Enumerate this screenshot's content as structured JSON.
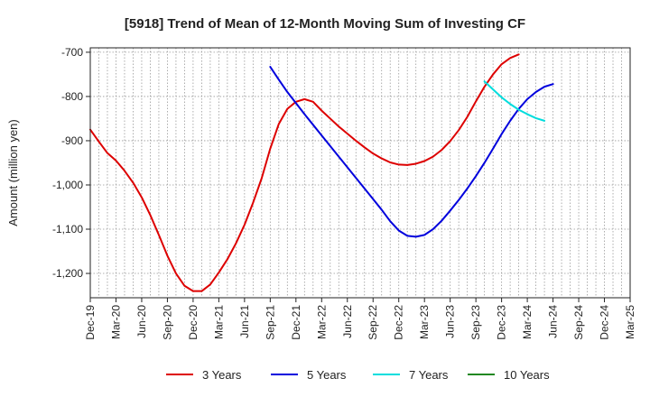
{
  "chart_data": {
    "type": "line",
    "title": "[5918]  Trend of Mean of 12-Month Moving Sum of Investing CF",
    "xlabel": "",
    "ylabel": "Amount (million yen)",
    "ylim": [
      -1255,
      -690
    ],
    "yticks": [
      -700,
      -800,
      -900,
      -1000,
      -1100,
      -1200
    ],
    "ytick_labels": [
      "-700",
      "-800",
      "-900",
      "-1,000",
      "-1,100",
      "-1,200"
    ],
    "x_start": "Dec-19",
    "x_end": "Mar-25",
    "n_months": 64,
    "xtick_labels": [
      "Dec-19",
      "Mar-20",
      "Jun-20",
      "Sep-20",
      "Dec-20",
      "Mar-21",
      "Jun-21",
      "Sep-21",
      "Dec-21",
      "Mar-22",
      "Jun-22",
      "Sep-22",
      "Dec-22",
      "Mar-23",
      "Jun-23",
      "Sep-23",
      "Dec-23",
      "Mar-24",
      "Jun-24",
      "Sep-24",
      "Dec-24",
      "Mar-25"
    ],
    "grid": true,
    "legend_position": "bottom",
    "series": [
      {
        "name": "3 Years",
        "color": "#dd0000",
        "start_index": 0,
        "values": [
          -875,
          -902,
          -928,
          -945,
          -968,
          -995,
          -1028,
          -1068,
          -1113,
          -1160,
          -1200,
          -1228,
          -1240,
          -1240,
          -1225,
          -1198,
          -1168,
          -1132,
          -1090,
          -1040,
          -985,
          -918,
          -862,
          -828,
          -812,
          -806,
          -812,
          -832,
          -850,
          -868,
          -884,
          -900,
          -915,
          -929,
          -940,
          -949,
          -954,
          -955,
          -952,
          -946,
          -936,
          -921,
          -901,
          -876,
          -846,
          -811,
          -778,
          -750,
          -727,
          -713,
          -705
        ]
      },
      {
        "name": "5 Years",
        "color": "#0000dd",
        "start_index": 21,
        "values": [
          -733,
          -762,
          -790,
          -815,
          -840,
          -864,
          -888,
          -912,
          -936,
          -960,
          -984,
          -1008,
          -1032,
          -1056,
          -1082,
          -1103,
          -1115,
          -1117,
          -1113,
          -1100,
          -1081,
          -1058,
          -1034,
          -1008,
          -980,
          -950,
          -918,
          -885,
          -855,
          -828,
          -806,
          -790,
          -778,
          -772
        ]
      },
      {
        "name": "7 Years",
        "color": "#00dddd",
        "start_index": 46,
        "values": [
          -766,
          -784,
          -802,
          -817,
          -830,
          -840,
          -849,
          -855
        ]
      },
      {
        "name": "10 Years",
        "color": "#228822",
        "start_index": 0,
        "values": []
      }
    ]
  }
}
